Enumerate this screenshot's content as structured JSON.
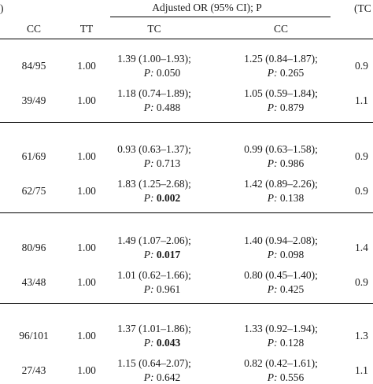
{
  "header": {
    "left_paren": ")",
    "group_title": "Adjusted OR (95% CI); P",
    "right_fragment": "(TC",
    "columns": [
      "CC",
      "TT",
      "TC",
      "CC"
    ]
  },
  "groups": [
    {
      "rows": [
        {
          "cc_counts": "84/95",
          "tt": "1.00",
          "tc_ci": "1.39 (1.00–1.93);",
          "tc_p_label": "P:",
          "tc_p": "0.050",
          "tc_p_bold": false,
          "cc_ci": "1.25 (0.84–1.87);",
          "cc_p_label": "P:",
          "cc_p": "0.265",
          "right_edge": "0.9"
        },
        {
          "cc_counts": "39/49",
          "tt": "1.00",
          "tc_ci": "1.18 (0.74–1.89);",
          "tc_p_label": "P:",
          "tc_p": "0.488",
          "tc_p_bold": false,
          "cc_ci": "1.05 (0.59–1.84);",
          "cc_p_label": "P:",
          "cc_p": "0.879",
          "right_edge": "1.1"
        }
      ]
    },
    {
      "rows": [
        {
          "cc_counts": "61/69",
          "tt": "1.00",
          "tc_ci": "0.93 (0.63–1.37);",
          "tc_p_label": "P:",
          "tc_p": "0.713",
          "tc_p_bold": false,
          "cc_ci": "0.99 (0.63–1.58);",
          "cc_p_label": "P:",
          "cc_p": "0.986",
          "right_edge": "0.9"
        },
        {
          "cc_counts": "62/75",
          "tt": "1.00",
          "tc_ci": "1.83 (1.25–2.68);",
          "tc_p_label": "P:",
          "tc_p": "0.002",
          "tc_p_bold": true,
          "cc_ci": "1.42 (0.89–2.26);",
          "cc_p_label": "P:",
          "cc_p": "0.138",
          "right_edge": "0.9"
        }
      ]
    },
    {
      "rows": [
        {
          "cc_counts": "80/96",
          "tt": "1.00",
          "tc_ci": "1.49 (1.07–2.06);",
          "tc_p_label": "P:",
          "tc_p": "0.017",
          "tc_p_bold": true,
          "cc_ci": "1.40 (0.94–2.08);",
          "cc_p_label": "P:",
          "cc_p": "0.098",
          "right_edge": "1.4"
        },
        {
          "cc_counts": "43/48",
          "tt": "1.00",
          "tc_ci": "1.01 (0.62–1.66);",
          "tc_p_label": "P:",
          "tc_p": "0.961",
          "tc_p_bold": false,
          "cc_ci": "0.80 (0.45–1.40);",
          "cc_p_label": "P:",
          "cc_p": "0.425",
          "right_edge": "0.9"
        }
      ]
    },
    {
      "rows": [
        {
          "cc_counts": "96/101",
          "tt": "1.00",
          "tc_ci": "1.37 (1.01–1.86);",
          "tc_p_label": "P:",
          "tc_p": "0.043",
          "tc_p_bold": true,
          "cc_ci": "1.33 (0.92–1.94);",
          "cc_p_label": "P:",
          "cc_p": "0.128",
          "right_edge": "1.3"
        },
        {
          "cc_counts": "27/43",
          "tt": "1.00",
          "tc_ci": "1.15 (0.64–2.07);",
          "tc_p_label": "P:",
          "tc_p": "0.642",
          "tc_p_bold": false,
          "cc_ci": "0.82 (0.42–1.61);",
          "cc_p_label": "P:",
          "cc_p": "0.556",
          "right_edge": "1.1"
        }
      ]
    }
  ]
}
